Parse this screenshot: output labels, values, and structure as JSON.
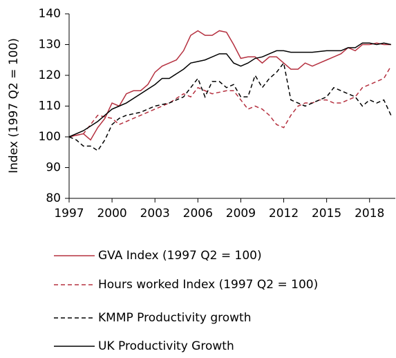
{
  "chart_data": {
    "type": "line",
    "y_label": "Index (1997 Q2 = 100)",
    "xlim": [
      1997,
      2019.8
    ],
    "xticks": [
      1997,
      2000,
      2003,
      2006,
      2009,
      2012,
      2015,
      2018
    ],
    "ylim": [
      80,
      140
    ],
    "yticks": [
      80,
      90,
      100,
      110,
      120,
      130,
      140
    ],
    "series": [
      {
        "name": "GVA Index (1997 Q2 = 100)",
        "color": "#b5303f",
        "style": "solid",
        "x": [
          1997,
          1998,
          1998.5,
          1999,
          1999.5,
          2000,
          2000.5,
          2001,
          2001.5,
          2002,
          2002.5,
          2003,
          2003.5,
          2004,
          2004.5,
          2005,
          2005.5,
          2006,
          2006.5,
          2007,
          2007.5,
          2008,
          2008.5,
          2009,
          2009.5,
          2010,
          2010.5,
          2011,
          2011.5,
          2012,
          2012.5,
          2013,
          2013.5,
          2014,
          2014.5,
          2015,
          2015.5,
          2016,
          2016.5,
          2017,
          2017.5,
          2018,
          2018.5,
          2019,
          2019.5
        ],
        "values": [
          100,
          101,
          99,
          103,
          106,
          111,
          110,
          114,
          115,
          115,
          117,
          121,
          123,
          124,
          125,
          128,
          133,
          134.5,
          133,
          133,
          134.5,
          134,
          130,
          125.5,
          126,
          126,
          124,
          126,
          126,
          124,
          122,
          122,
          124,
          123,
          124,
          125,
          126,
          127,
          129,
          128,
          130,
          130,
          130.5,
          130,
          130
        ]
      },
      {
        "name": "Hours worked Index (1997 Q2 = 100)",
        "color": "#b5303f",
        "style": "dashed",
        "x": [
          1997,
          1998,
          1999,
          2000,
          2000.5,
          2001,
          2002,
          2003,
          2004,
          2005,
          2005.5,
          2006,
          2006.5,
          2007,
          2008,
          2008.5,
          2009,
          2009.5,
          2010,
          2010.5,
          2011,
          2011.5,
          2012,
          2012.5,
          2013,
          2013.5,
          2014,
          2014.5,
          2015,
          2015.5,
          2016,
          2016.5,
          2017,
          2017.5,
          2018,
          2018.5,
          2019,
          2019.5
        ],
        "values": [
          100,
          101,
          107,
          106,
          104,
          105,
          107,
          109,
          111,
          114,
          113,
          116,
          115,
          114,
          115,
          115,
          112,
          109,
          110,
          109,
          107,
          104,
          103,
          107,
          110,
          111,
          111,
          112,
          112,
          111,
          111,
          112,
          113,
          116,
          117,
          118,
          119,
          123
        ]
      },
      {
        "name": "KMMP Productivity growth",
        "color": "#000000",
        "style": "dashed",
        "x": [
          1997,
          1997.5,
          1998,
          1998.5,
          1999,
          1999.5,
          2000,
          2000.5,
          2001,
          2002,
          2003,
          2004,
          2005,
          2005.5,
          2006,
          2006.5,
          2007,
          2007.5,
          2008,
          2008.5,
          2009,
          2009.5,
          2010,
          2010.5,
          2011,
          2011.5,
          2012,
          2012.5,
          2013,
          2013.5,
          2014,
          2014.5,
          2015,
          2015.5,
          2016,
          2016.5,
          2017,
          2017.5,
          2018,
          2018.5,
          2019,
          2019.5
        ],
        "values": [
          100,
          99,
          97,
          97,
          95.5,
          99,
          104,
          106,
          107,
          108,
          110,
          111,
          113,
          116,
          119,
          113,
          118,
          118,
          116,
          117,
          113,
          113,
          120,
          116,
          119,
          121,
          124,
          112,
          111,
          110,
          111,
          112,
          113,
          116,
          115,
          114,
          113,
          110,
          112,
          111,
          112,
          107
        ]
      },
      {
        "name": "UK Productivity Growth",
        "color": "#000000",
        "style": "solid",
        "x": [
          1997,
          1998,
          1999,
          1999.5,
          2000,
          2000.5,
          2001,
          2002,
          2003,
          2003.5,
          2004,
          2005,
          2005.5,
          2006,
          2006.5,
          2007,
          2007.5,
          2008,
          2008.5,
          2009,
          2009.5,
          2010,
          2010.5,
          2011,
          2011.5,
          2012,
          2012.5,
          2013,
          2014,
          2015,
          2016,
          2016.5,
          2017,
          2017.5,
          2018,
          2018.5,
          2019,
          2019.5
        ],
        "values": [
          100,
          102,
          105,
          107,
          109,
          110,
          111,
          114,
          117,
          119,
          119,
          122,
          124,
          124.5,
          125,
          126,
          127,
          127,
          124,
          123,
          124,
          125.5,
          126,
          127,
          128,
          128,
          127.5,
          127.5,
          127.5,
          128,
          128,
          129,
          129,
          130.5,
          130.5,
          130,
          130.5,
          130
        ]
      }
    ]
  }
}
